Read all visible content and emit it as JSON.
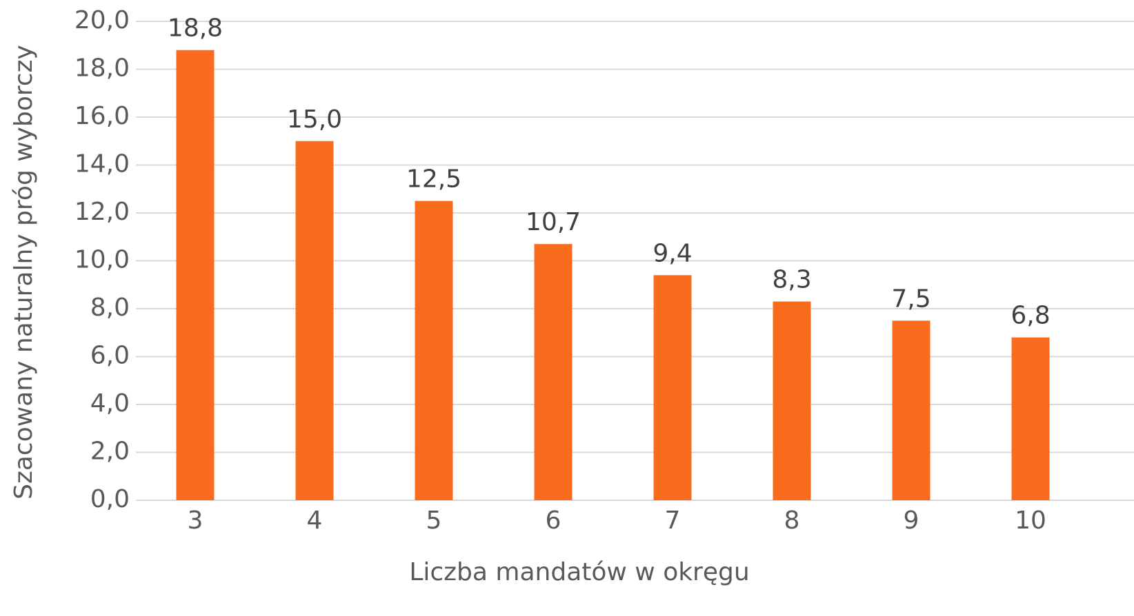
{
  "chart_data": {
    "type": "bar",
    "x_label": "Liczba mandatów w okręgu",
    "y_label": "Szacowany naturalny próg wyborczy",
    "categories": [
      "3",
      "4",
      "5",
      "6",
      "7",
      "8",
      "9",
      "10"
    ],
    "values": [
      18.8,
      15.0,
      12.5,
      10.7,
      9.4,
      8.3,
      7.5,
      6.8
    ],
    "value_labels": [
      "18,8",
      "15,0",
      "12,5",
      "10,7",
      "9,4",
      "8,3",
      "7,5",
      "6,8"
    ],
    "color": "#f96b1d",
    "ylim": [
      0,
      20
    ],
    "yticks": [
      {
        "value": 0,
        "label": "0,0"
      },
      {
        "value": 2,
        "label": "2,0"
      },
      {
        "value": 4,
        "label": "4,0"
      },
      {
        "value": 6,
        "label": "6,0"
      },
      {
        "value": 8,
        "label": "8,0"
      },
      {
        "value": 10,
        "label": "10,0"
      },
      {
        "value": 12,
        "label": "12,0"
      },
      {
        "value": 14,
        "label": "14,0"
      },
      {
        "value": 16,
        "label": "16,0"
      },
      {
        "value": 18,
        "label": "18,0"
      },
      {
        "value": 20,
        "label": "20,0"
      }
    ],
    "grid": true
  }
}
